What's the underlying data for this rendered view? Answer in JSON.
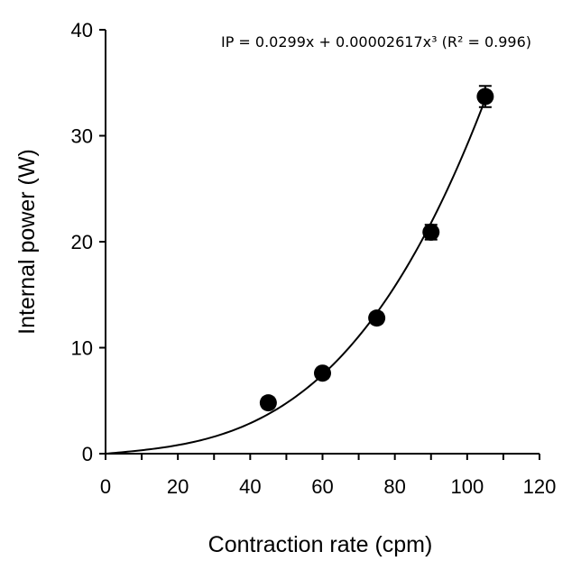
{
  "chart_data": {
    "type": "scatter",
    "xlabel": "Contraction rate (cpm)",
    "ylabel": "Internal power (W)",
    "annotation": "IP = 0.0299x + 0.00002617x³ (R² = 0.996)",
    "xlim": [
      0,
      120
    ],
    "ylim": [
      0,
      40
    ],
    "xticks": [
      0,
      20,
      40,
      60,
      80,
      100,
      120
    ],
    "yticks": [
      0,
      10,
      20,
      30,
      40
    ],
    "grid": false,
    "series": [
      {
        "x": [
          45,
          60,
          75,
          90,
          105
        ],
        "y": [
          4.8,
          7.6,
          12.8,
          20.9,
          33.7
        ],
        "error": [
          0.5,
          0.5,
          0.5,
          0.7,
          1.0
        ]
      }
    ],
    "fit": {
      "type": "polynomial",
      "a1": 0.0299,
      "a3": 2.617e-05,
      "x_range": [
        0,
        105
      ]
    },
    "colors": {
      "marker": "#000000",
      "line": "#000000",
      "axis": "#000000"
    }
  }
}
